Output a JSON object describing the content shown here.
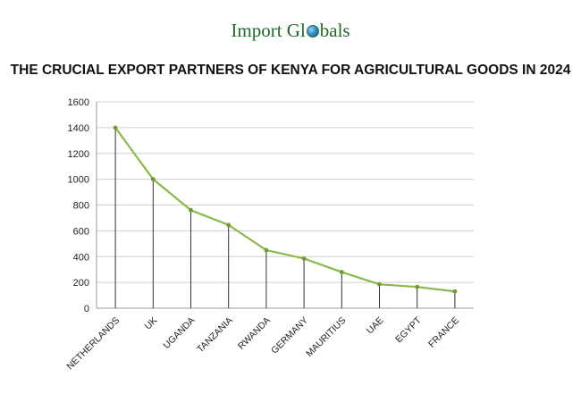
{
  "logo": {
    "text_before": "Import Gl",
    "text_after": "bals",
    "globe_icon": "globe-icon"
  },
  "colors": {
    "line": "#8ab84a",
    "marker": "#6f9a34",
    "grid": "#cfcfcf",
    "drop_line": "#333333",
    "logo": "#1f6a2a"
  },
  "chart_data": {
    "type": "line",
    "title": "THE CRUCIAL EXPORT PARTNERS OF KENYA FOR AGRICULTURAL GOODS IN 2024",
    "xlabel": "",
    "ylabel": "",
    "categories": [
      "NETHERLANDS",
      "UK",
      "UGANDA",
      "TANZANIA",
      "RWANDA",
      "GERMANY",
      "MAURITIUS",
      "UAE",
      "EGYPT",
      "FRANCE"
    ],
    "values": [
      1400,
      1000,
      760,
      645,
      450,
      385,
      280,
      185,
      165,
      130
    ],
    "ylim": [
      0,
      1600
    ],
    "yticks": [
      0,
      200,
      400,
      600,
      800,
      1000,
      1200,
      1400,
      1600
    ],
    "grid": true,
    "legend": "none",
    "drop_lines": true
  }
}
